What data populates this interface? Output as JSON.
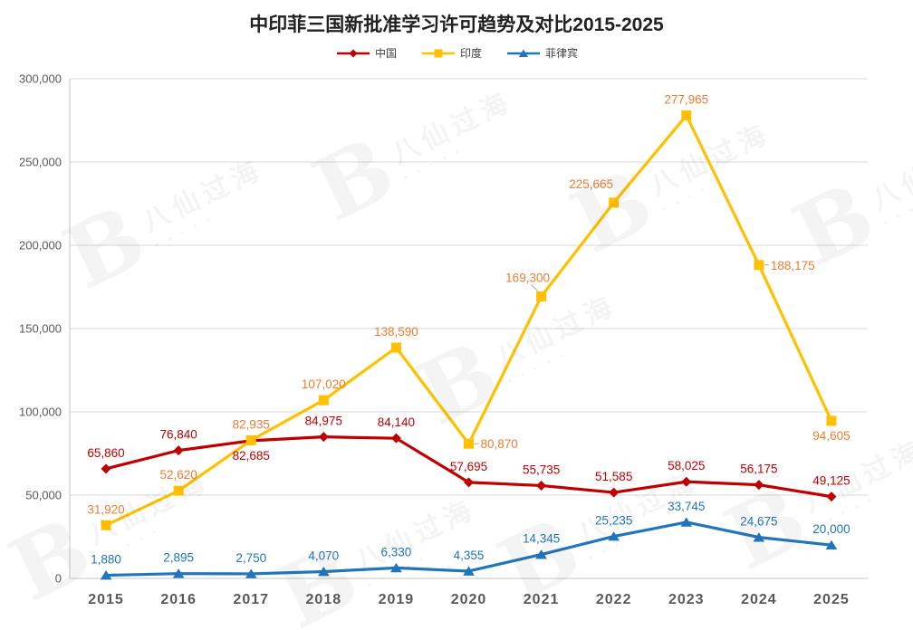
{
  "title": "中印菲三国新批准学习许可趋势及对比2015-2025",
  "watermark": {
    "text": "八仙过海",
    "logo_glyph": "B"
  },
  "chart_data": {
    "type": "line",
    "title": "中印菲三国新批准学习许可趋势及对比2015-2025",
    "categories": [
      "2015",
      "2016",
      "2017",
      "2018",
      "2019",
      "2020",
      "2021",
      "2022",
      "2023",
      "2024",
      "2025"
    ],
    "series": [
      {
        "name": "中国",
        "color": "#c00000",
        "label_color": "#c00000",
        "marker": "diamond",
        "values": [
          65860,
          76840,
          82685,
          84975,
          84140,
          57695,
          55735,
          51585,
          58025,
          56175,
          49125
        ],
        "label_pos": [
          "above",
          "above",
          "below",
          "above",
          "above",
          "above",
          "above",
          "above",
          "above",
          "above",
          "above"
        ]
      },
      {
        "name": "印度",
        "color": "#ffc000",
        "label_color": "#ed7d31",
        "marker": "square",
        "values": [
          31920,
          52620,
          82935,
          107020,
          138590,
          80870,
          169300,
          225665,
          277965,
          188175,
          94605
        ],
        "label_pos": [
          "above",
          "above",
          "above",
          "above",
          "above",
          "right",
          "left-line",
          "above-left",
          "above",
          "right",
          "below"
        ]
      },
      {
        "name": "菲律宾",
        "color": "#2175bc",
        "label_color": "#2175bc",
        "marker": "triangle",
        "values": [
          1880,
          2895,
          2750,
          4070,
          6330,
          4355,
          14345,
          25235,
          33745,
          24675,
          20000
        ],
        "label_pos": [
          "above",
          "above",
          "above",
          "above",
          "above",
          "above",
          "above",
          "above",
          "above",
          "above",
          "above"
        ]
      }
    ],
    "ylim": [
      0,
      300000
    ],
    "ytick_step": 50000,
    "yticks": [
      "0",
      "50,000",
      "100,000",
      "150,000",
      "200,000",
      "250,000",
      "300,000"
    ],
    "grid": true,
    "legend_position": "top",
    "grid_color": "#d9d9d9",
    "axis_color": "#c6c6c6",
    "tick_label_color": "#595959",
    "leader_line_color": "#a6a6a6"
  }
}
